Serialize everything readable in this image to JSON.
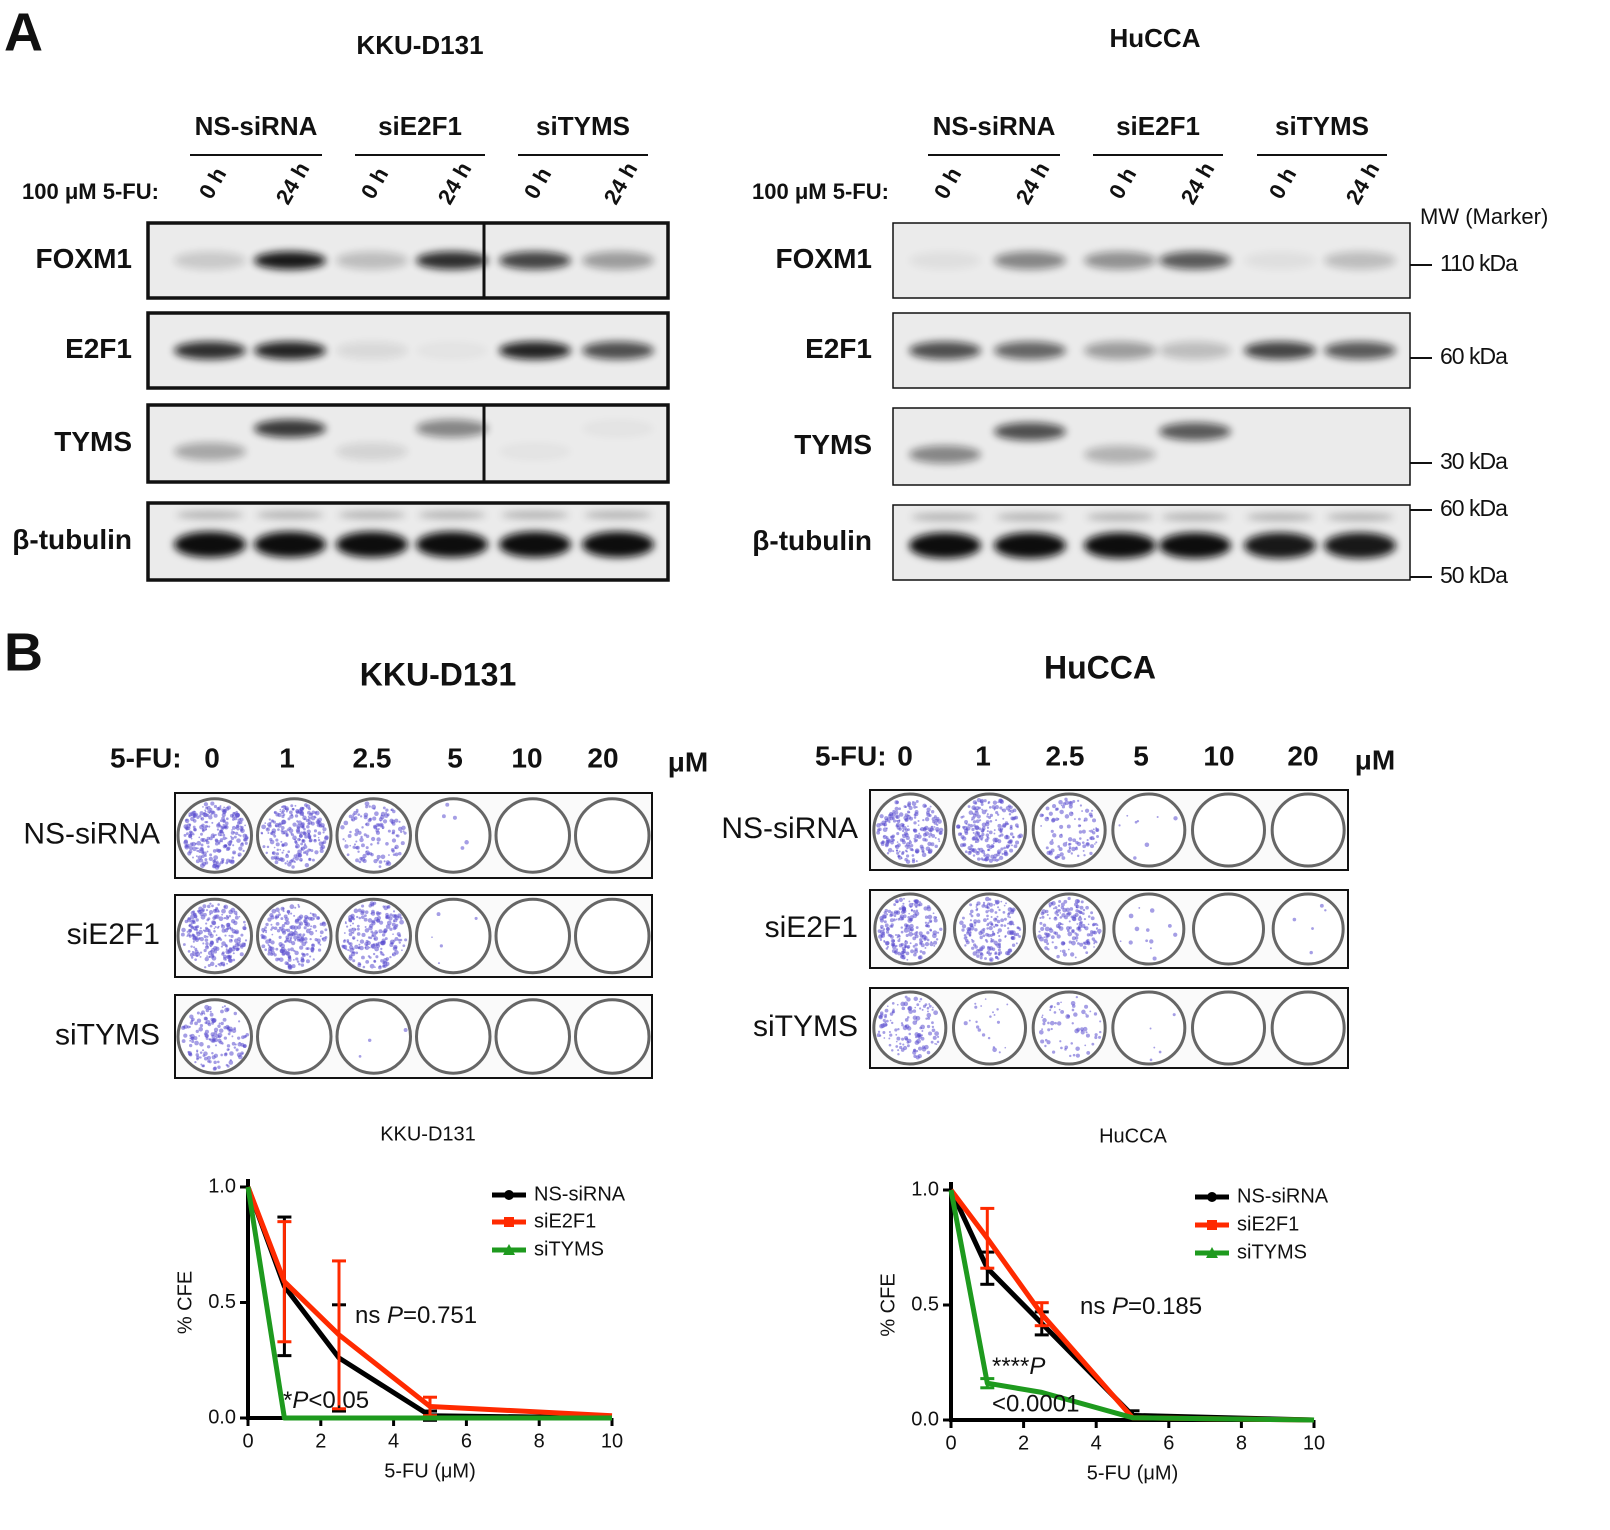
{
  "panel_a": {
    "label": "A",
    "blots": [
      {
        "title": "KKU-D131",
        "treatment_label": "100 μM 5-FU:",
        "groups": [
          "NS-siRNA",
          "siE2F1",
          "siTYMS"
        ],
        "times": [
          "0 h",
          "24 h",
          "0 h",
          "24 h",
          "0 h",
          "24 h"
        ],
        "proteins": [
          "FOXM1",
          "E2F1",
          "TYMS",
          "β-tubulin"
        ]
      },
      {
        "title": "HuCCA",
        "treatment_label": "100 μM 5-FU:",
        "groups": [
          "NS-siRNA",
          "siE2F1",
          "siTYMS"
        ],
        "times": [
          "0 h",
          "24 h",
          "0 h",
          "24 h",
          "0 h",
          "24 h"
        ],
        "proteins": [
          "FOXM1",
          "E2F1",
          "TYMS",
          "β-tubulin"
        ],
        "marker_title": "MW (Marker)",
        "markers": [
          "110 kDa",
          "60 kDa",
          "30 kDa",
          "60 kDa",
          "50 kDa"
        ]
      }
    ]
  },
  "panel_b": {
    "label": "B",
    "plates": [
      {
        "title": "KKU-D131",
        "dose_label": "5-FU:",
        "doses": [
          0,
          1,
          2.5,
          5,
          10,
          20
        ],
        "unit": "μM",
        "rows": [
          "NS-siRNA",
          "siE2F1",
          "siTYMS"
        ]
      },
      {
        "title": "HuCCA",
        "dose_label": "5-FU:",
        "doses": [
          0,
          1,
          2.5,
          5,
          10,
          20
        ],
        "unit": "μM",
        "rows": [
          "NS-siRNA",
          "siE2F1",
          "siTYMS"
        ]
      }
    ]
  },
  "chart_data": [
    {
      "type": "line",
      "title": "KKU-D131",
      "x_label": "5-FU (μM)",
      "y_label": "% CFE",
      "x": [
        0,
        1,
        2.5,
        5,
        10
      ],
      "xlim": [
        0,
        10
      ],
      "xticks": [
        0,
        2,
        4,
        6,
        8,
        10
      ],
      "ylim": [
        0,
        1
      ],
      "yticks": [
        {
          "value": 0,
          "label": "0.0"
        },
        {
          "value": 0.5,
          "label": "0.5"
        },
        {
          "value": 1,
          "label": "1.0"
        }
      ],
      "legend": "upper right",
      "series": [
        {
          "name": "NS-siRNA",
          "color": "#000000",
          "values": [
            1,
            0.57,
            0.26,
            0.01,
            0
          ],
          "errors": [
            null,
            0.3,
            0.23,
            0.02,
            null
          ]
        },
        {
          "name": "siE2F1",
          "color": "#ff2a00",
          "values": [
            1,
            0.59,
            0.36,
            0.05,
            0.01
          ],
          "errors": [
            null,
            0.26,
            0.32,
            0.04,
            null
          ]
        },
        {
          "name": "siTYMS",
          "color": "#1e9a1e",
          "values": [
            1,
            0,
            0,
            0,
            0
          ],
          "errors": [
            null,
            null,
            null,
            null,
            null
          ]
        }
      ],
      "annotations": [
        {
          "parts": [
            "ns ",
            "P",
            "=0.751"
          ]
        },
        {
          "parts": [
            "*",
            "P",
            "<0.05"
          ]
        }
      ]
    },
    {
      "type": "line",
      "title": "HuCCA",
      "x_label": "5-FU (μM)",
      "y_label": "% CFE",
      "x": [
        0,
        1,
        2.5,
        5,
        10
      ],
      "xlim": [
        0,
        10
      ],
      "xticks": [
        0,
        2,
        4,
        6,
        8,
        10
      ],
      "ylim": [
        0,
        1
      ],
      "yticks": [
        {
          "value": 0,
          "label": "0.0"
        },
        {
          "value": 0.5,
          "label": "0.5"
        },
        {
          "value": 1,
          "label": "1.0"
        }
      ],
      "legend": "upper right",
      "series": [
        {
          "name": "NS-siRNA",
          "color": "#000000",
          "values": [
            1,
            0.66,
            0.42,
            0.02,
            0
          ],
          "errors": [
            null,
            0.07,
            0.05,
            0.02,
            null
          ]
        },
        {
          "name": "siE2F1",
          "color": "#ff2a00",
          "values": [
            1,
            0.79,
            0.46,
            0.01,
            0
          ],
          "errors": [
            null,
            0.13,
            0.05,
            null,
            null
          ]
        },
        {
          "name": "siTYMS",
          "color": "#1e9a1e",
          "values": [
            1,
            0.16,
            0.12,
            0.01,
            0
          ],
          "errors": [
            null,
            0.02,
            null,
            null,
            null
          ]
        }
      ],
      "annotations": [
        {
          "parts": [
            "ns ",
            "P",
            "=0.185"
          ]
        },
        {
          "parts": [
            "****",
            "P",
            "<0.0001"
          ]
        }
      ]
    }
  ]
}
